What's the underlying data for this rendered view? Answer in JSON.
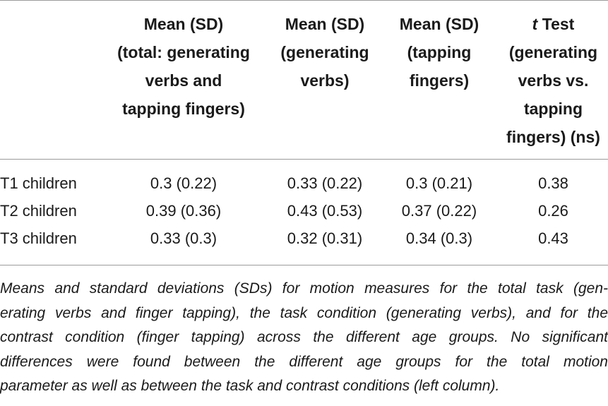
{
  "table": {
    "headers": [
      {
        "lines": [
          "Mean (SD)",
          "(total: generating",
          "verbs and",
          "tapping fingers)"
        ]
      },
      {
        "lines": [
          "Mean (SD)",
          "(generating",
          "verbs)"
        ]
      },
      {
        "lines": [
          "Mean (SD)",
          "(tapping",
          "fingers)"
        ]
      },
      {
        "t_prefix": "t",
        "lines": [
          " Test",
          "(generating",
          "verbs vs.",
          "tapping",
          "fingers) (ns)"
        ]
      }
    ],
    "rows": [
      {
        "label": "T1 children",
        "values": [
          "0.3 (0.22)",
          "0.33 (0.22)",
          "0.3 (0.21)",
          "0.38"
        ]
      },
      {
        "label": "T2 children",
        "values": [
          "0.39 (0.36)",
          "0.43 (0.53)",
          "0.37 (0.22)",
          "0.26"
        ]
      },
      {
        "label": "T3 children",
        "values": [
          "0.33 (0.3)",
          "0.32 (0.31)",
          "0.34 (0.3)",
          "0.43"
        ]
      }
    ]
  },
  "caption": {
    "lines": [
      "Means and standard deviations (SDs) for motion measures for the total task (gen-",
      "erating verbs and finger tapping), the task condition (generating verbs), and for the",
      "contrast condition (finger tapping) across the different age groups. No significant",
      "differences were found between the different age groups for the total motion",
      "parameter as well as between the task and contrast conditions (left column)."
    ]
  }
}
